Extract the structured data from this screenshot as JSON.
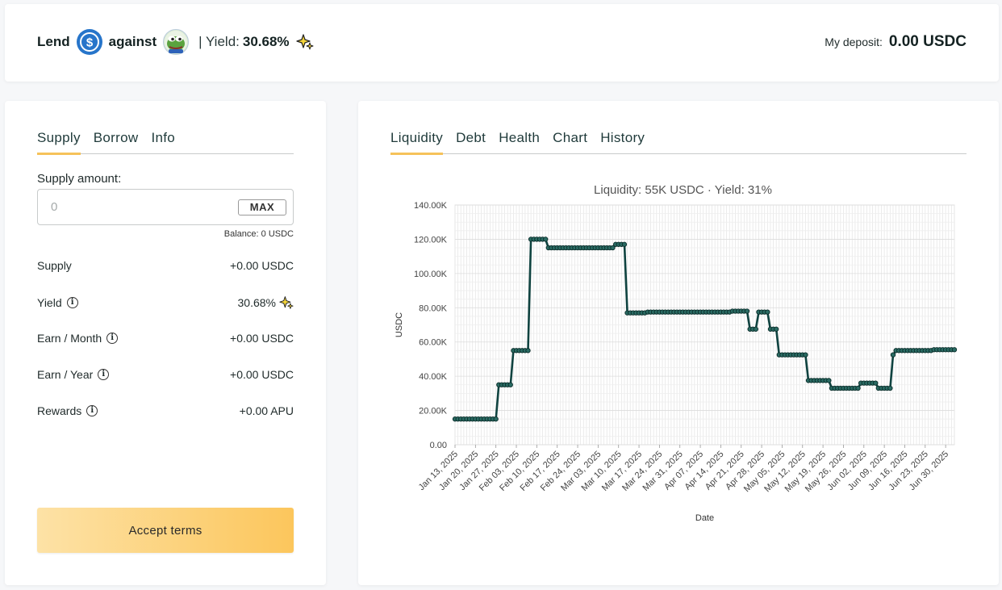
{
  "header": {
    "lend": "Lend",
    "against": "against",
    "yield_label": "| Yield:",
    "yield_value": "30.68%",
    "deposit_label": "My deposit:",
    "deposit_value": "0.00 USDC"
  },
  "left_panel": {
    "tabs": [
      {
        "label": "Supply",
        "active": true
      },
      {
        "label": "Borrow",
        "active": false
      },
      {
        "label": "Info",
        "active": false
      }
    ],
    "supply_amount_label": "Supply amount:",
    "amount_placeholder": "0",
    "max_label": "MAX",
    "balance": "Balance: 0 USDC",
    "rows": [
      {
        "label": "Supply",
        "value": "+0.00 USDC"
      },
      {
        "label": "Yield",
        "value": "30.68%"
      },
      {
        "label": "Earn / Month",
        "value": "+0.00 USDC"
      },
      {
        "label": "Earn / Year",
        "value": "+0.00 USDC"
      },
      {
        "label": "Rewards",
        "value": "+0.00 APU"
      }
    ],
    "accept_label": "Accept terms"
  },
  "right_panel": {
    "tabs": [
      {
        "label": "Liquidity",
        "active": true
      },
      {
        "label": "Debt",
        "active": false
      },
      {
        "label": "Health",
        "active": false
      },
      {
        "label": "Chart",
        "active": false
      },
      {
        "label": "History",
        "active": false
      }
    ]
  },
  "colors": {
    "accent": "#f6c25a",
    "line": "#0f4340",
    "usdc": "#2775ca"
  },
  "chart_data": {
    "type": "line",
    "title": "Liquidity: 55K USDC · Yield: 31%",
    "xlabel": "Date",
    "ylabel": "USDC",
    "ylim": [
      0,
      140000
    ],
    "y_ticks": [
      "0.00",
      "20.00K",
      "40.00K",
      "60.00K",
      "80.00K",
      "100.00K",
      "120.00K",
      "140.00K"
    ],
    "x_start": "2025-01-13",
    "x_end": "2025-07-03",
    "x_ticks": [
      "Jan 13, 2025",
      "Jan 20, 2025",
      "Jan 27, 2025",
      "Feb 03, 2025",
      "Feb 10, 2025",
      "Feb 17, 2025",
      "Feb 24, 2025",
      "Mar 03, 2025",
      "Mar 10, 2025",
      "Mar 17, 2025",
      "Mar 24, 2025",
      "Mar 31, 2025",
      "Apr 07, 2025",
      "Apr 14, 2025",
      "Apr 21, 2025",
      "Apr 28, 2025",
      "May 05, 2025",
      "May 12, 2025",
      "May 19, 2025",
      "May 26, 2025",
      "Jun 02, 2025",
      "Jun 09, 2025",
      "Jun 16, 2025",
      "Jun 23, 2025",
      "Jun 30, 2025"
    ],
    "grid": true,
    "series": [
      {
        "points": [
          [
            "2025-01-13",
            15000
          ],
          [
            "2025-01-27",
            15000
          ],
          [
            "2025-01-28",
            35000
          ],
          [
            "2025-02-01",
            35000
          ],
          [
            "2025-02-02",
            55000
          ],
          [
            "2025-02-07",
            55000
          ],
          [
            "2025-02-08",
            120000
          ],
          [
            "2025-02-13",
            120000
          ],
          [
            "2025-02-14",
            115000
          ],
          [
            "2025-03-08",
            115000
          ],
          [
            "2025-03-09",
            117000
          ],
          [
            "2025-03-12",
            117000
          ],
          [
            "2025-03-13",
            77000
          ],
          [
            "2025-03-19",
            77000
          ],
          [
            "2025-03-20",
            77500
          ],
          [
            "2025-04-17",
            77500
          ],
          [
            "2025-04-18",
            78000
          ],
          [
            "2025-04-23",
            78000
          ],
          [
            "2025-04-24",
            67500
          ],
          [
            "2025-04-26",
            67500
          ],
          [
            "2025-04-27",
            77500
          ],
          [
            "2025-04-30",
            77500
          ],
          [
            "2025-05-01",
            67500
          ],
          [
            "2025-05-03",
            67500
          ],
          [
            "2025-05-04",
            52500
          ],
          [
            "2025-05-13",
            52500
          ],
          [
            "2025-05-14",
            37500
          ],
          [
            "2025-05-21",
            37500
          ],
          [
            "2025-05-22",
            33000
          ],
          [
            "2025-05-31",
            33000
          ],
          [
            "2025-06-01",
            36000
          ],
          [
            "2025-06-06",
            36000
          ],
          [
            "2025-06-07",
            33000
          ],
          [
            "2025-06-11",
            33000
          ],
          [
            "2025-06-12",
            52500
          ],
          [
            "2025-06-13",
            55000
          ],
          [
            "2025-06-25",
            55000
          ],
          [
            "2025-06-26",
            55500
          ],
          [
            "2025-07-03",
            55500
          ]
        ]
      }
    ]
  }
}
